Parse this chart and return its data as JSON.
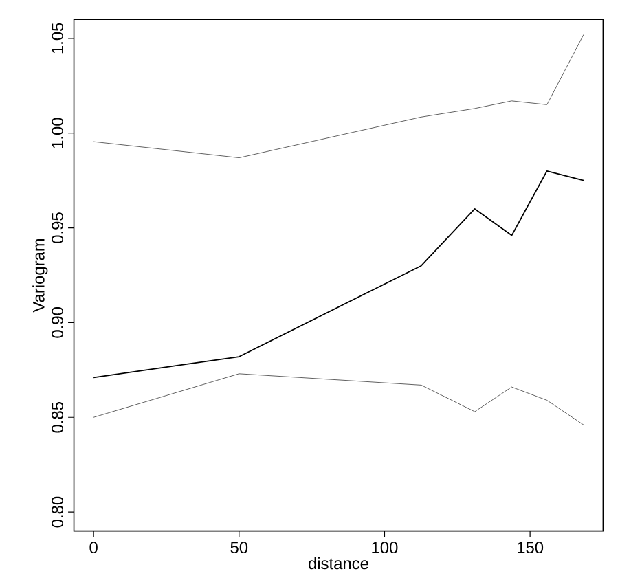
{
  "chart_data": {
    "type": "line",
    "xlabel": "distance",
    "ylabel": "Variogram",
    "x": [
      0,
      50,
      112.6,
      131,
      143.7,
      155.8,
      168.4
    ],
    "series": [
      {
        "color": "#000000",
        "values": [
          0.871,
          0.882,
          0.93,
          0.96,
          0.946,
          0.98,
          0.975
        ]
      },
      {
        "color": "#606060",
        "values": [
          0.9955,
          0.987,
          1.0085,
          1.013,
          1.017,
          1.015,
          1.052
        ]
      },
      {
        "color": "#606060",
        "values": [
          0.85,
          0.873,
          0.867,
          0.853,
          0.866,
          0.859,
          0.846
        ]
      }
    ],
    "xlim": [
      -6.75,
      175.1
    ],
    "ylim": [
      0.79,
      1.06
    ],
    "xticks": [
      0,
      50,
      100,
      150
    ],
    "yticks": [
      {
        "value": 0.8,
        "label": "0.80"
      },
      {
        "value": 0.85,
        "label": "0.85"
      },
      {
        "value": 0.9,
        "label": "0.90"
      },
      {
        "value": 0.95,
        "label": "0.95"
      },
      {
        "value": 1.0,
        "label": "1.00"
      },
      {
        "value": 1.05,
        "label": "1.05"
      }
    ],
    "grid": false,
    "marker": "none",
    "line_style": "solid"
  }
}
